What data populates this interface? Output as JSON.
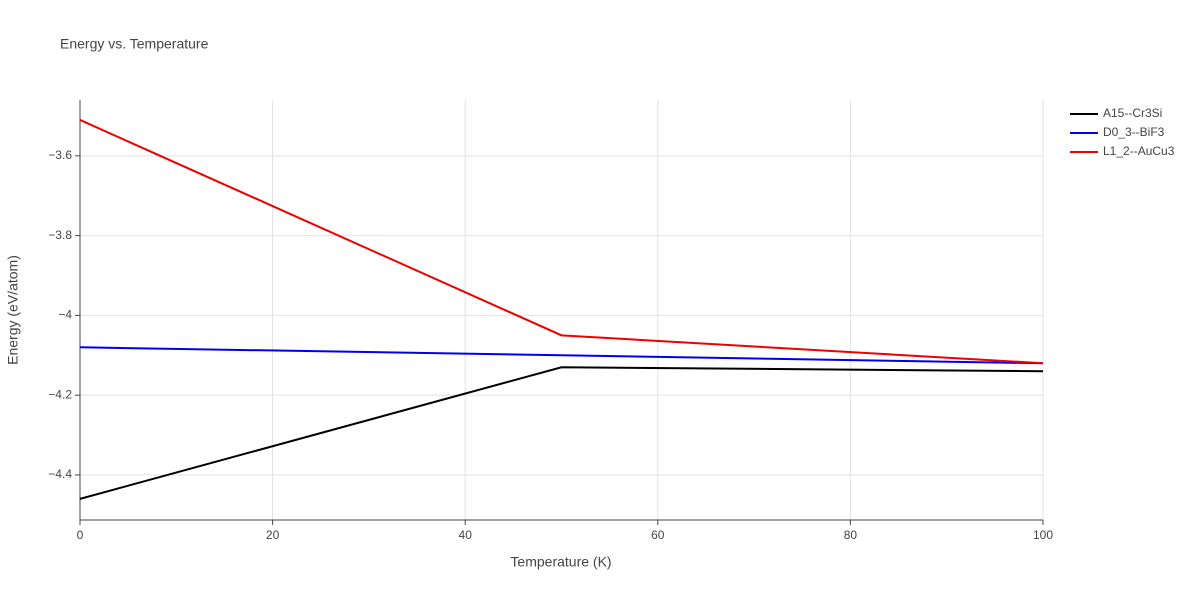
{
  "chart_data": {
    "type": "line",
    "title": "Energy vs. Temperature",
    "xlabel": "Temperature (K)",
    "ylabel": "Energy (eV/atom)",
    "x": [
      0,
      50,
      100
    ],
    "series": [
      {
        "name": "A15--Cr3Si",
        "color": "#000000",
        "values": [
          -4.46,
          -4.13,
          -4.14
        ]
      },
      {
        "name": "D0_3--BiF3",
        "color": "#0000ee",
        "values": [
          -4.08,
          -4.1,
          -4.12
        ]
      },
      {
        "name": "L1_2--AuCu3",
        "color": "#ee0000",
        "values": [
          -3.51,
          -4.05,
          -4.12
        ]
      }
    ],
    "xlim": [
      0,
      100
    ],
    "xticks": [
      0,
      20,
      40,
      60,
      80,
      100
    ],
    "ylim": [
      -4.513,
      -3.46
    ],
    "yticks": [
      {
        "value": -3.6,
        "label": "−3.6"
      },
      {
        "value": -3.8,
        "label": "−3.8"
      },
      {
        "value": -4,
        "label": "−4"
      },
      {
        "value": -4.2,
        "label": "−4.2"
      },
      {
        "value": -4.4,
        "label": "−4.4"
      }
    ],
    "grid": true,
    "legend": "top-right"
  }
}
